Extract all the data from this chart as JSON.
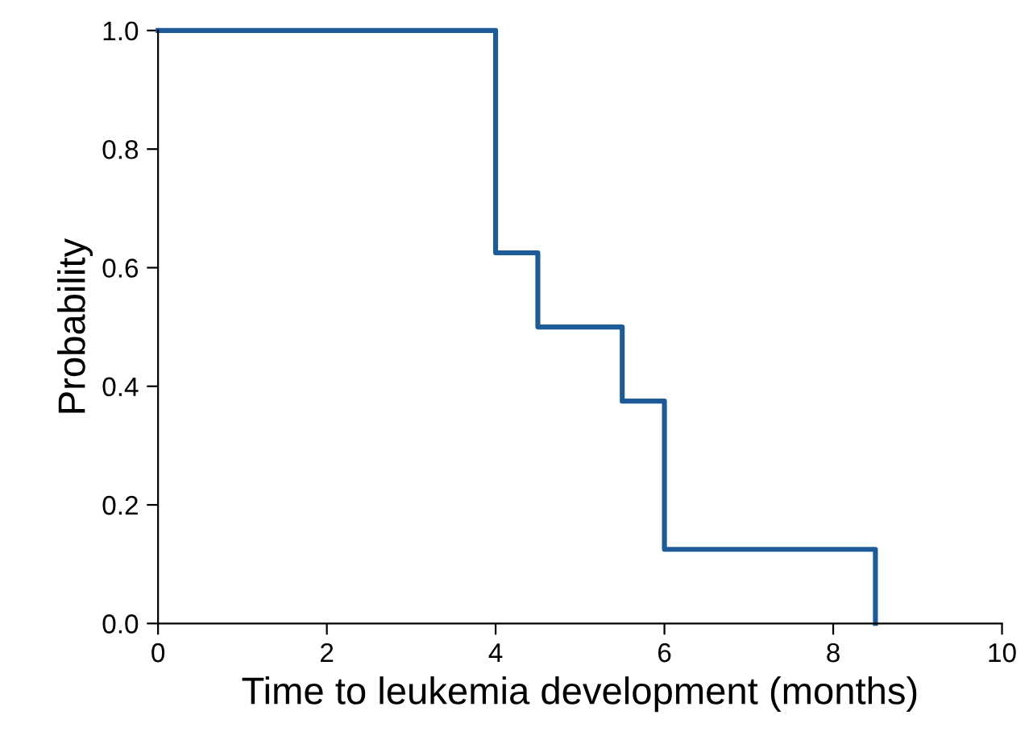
{
  "chart_data": {
    "type": "step",
    "xlabel": "Time to leukemia development (months)",
    "ylabel": "Probability",
    "x": [
      0,
      4,
      4.5,
      5.5,
      6,
      8.5
    ],
    "series": [
      {
        "color": "#1d5a98",
        "values": [
          1.0,
          0.625,
          0.5,
          0.375,
          0.125,
          0.0
        ]
      }
    ],
    "xlim": [
      0,
      10
    ],
    "xticks": [
      0,
      2,
      4,
      6,
      8,
      10
    ],
    "ylim": [
      0,
      1.0
    ],
    "yticks": [
      {
        "value": 0,
        "label": "0.0"
      },
      {
        "value": 0.2,
        "label": "0.2"
      },
      {
        "value": 0.4,
        "label": "0.4"
      },
      {
        "value": 0.6,
        "label": "0.6"
      },
      {
        "value": 0.8,
        "label": "0.8"
      },
      {
        "value": 1.0,
        "label": "1.0"
      }
    ],
    "grid": false
  }
}
